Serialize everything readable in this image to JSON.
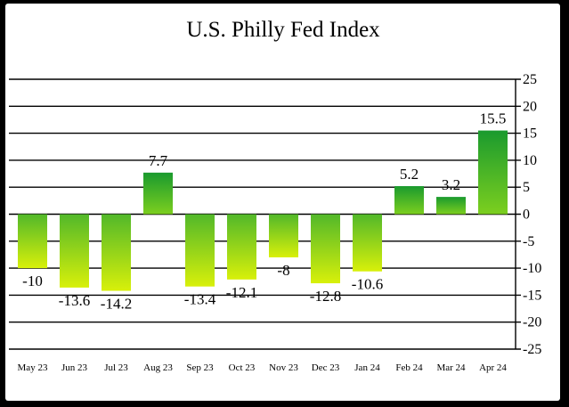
{
  "chart_data": {
    "type": "bar",
    "title": "U.S. Philly Fed Index",
    "xlabel": "",
    "ylabel": "",
    "categories": [
      "May 23",
      "Jun 23",
      "Jul 23",
      "Aug 23",
      "Sep 23",
      "Oct 23",
      "Nov 23",
      "Dec 23",
      "Jan 24",
      "Feb 24",
      "Mar 24",
      "Apr 24"
    ],
    "values": [
      -10,
      -13.6,
      -14.2,
      7.7,
      -13.4,
      -12.1,
      -8,
      -12.8,
      -10.6,
      5.2,
      3.2,
      15.5
    ],
    "value_labels": [
      "-10",
      "-13.6",
      "-14.2",
      "7.7",
      "-13.4",
      "-12.1",
      "-8",
      "-12.8",
      "-10.6",
      "5.2",
      "3.2",
      "15.5"
    ],
    "ylim": [
      -25,
      25
    ],
    "yticks": [
      25,
      20,
      15,
      10,
      5,
      0,
      -5,
      -10,
      -15,
      -20,
      -25
    ],
    "ytick_labels": [
      "25",
      "20",
      "15",
      "10",
      "5",
      "0",
      "-5",
      "-10",
      "-15",
      "-20",
      "-25"
    ],
    "y_axis_side": "right",
    "grid": true,
    "legend": "none",
    "colors": {
      "positive_top": "#1a9a2e",
      "positive_bottom": "#7ccf1f",
      "negative_top": "#52b82a",
      "negative_bottom": "#d8f00a",
      "grid": "#000000",
      "background": "#ffffff",
      "frame": "#000000"
    }
  }
}
